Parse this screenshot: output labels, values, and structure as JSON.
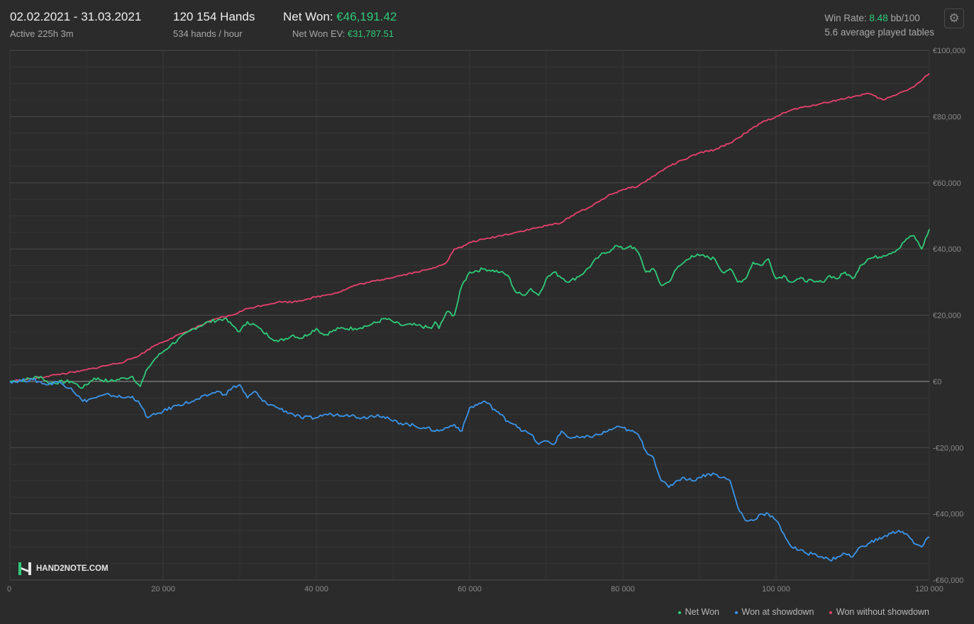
{
  "header": {
    "date_range": "02.02.2021 - 31.03.2021",
    "active": "Active 225h 3m",
    "hands": "120 154 Hands",
    "hands_per_hour": "534 hands / hour",
    "net_won_label": "Net Won:",
    "net_won_value": "€46,191.42",
    "net_won_ev_label": "Net Won  EV:",
    "net_won_ev_value": "€31,787.51",
    "win_rate_label": "Win Rate:",
    "win_rate_value": "8.48",
    "win_rate_unit": "bb/100",
    "avg_tables": "5.6 average played tables"
  },
  "icons": {
    "settings": "gear-icon",
    "logo": "hand2note-logo"
  },
  "logo_text": "HAND2NOTE.COM",
  "colors": {
    "net_won": "#2ecc7a",
    "showdown": "#3a95ea",
    "non_showdown": "#e8416e",
    "background": "#2b2b2b"
  },
  "chart_data": {
    "type": "line",
    "xlim": [
      0,
      120000
    ],
    "ylim": [
      -60000,
      100000
    ],
    "x_ticks": [
      0,
      20000,
      40000,
      60000,
      80000,
      100000,
      120000
    ],
    "x_tick_labels": [
      "0",
      "20 000",
      "40 000",
      "60 000",
      "80 000",
      "100 000",
      "120 000"
    ],
    "y_ticks": [
      100000,
      80000,
      60000,
      40000,
      20000,
      0,
      -20000,
      -40000,
      -60000
    ],
    "y_tick_labels": [
      "€100,000",
      "€80,000",
      "€60,000",
      "€40,000",
      "€20,000",
      "€0",
      "-€20,000",
      "-€40,000",
      "-€60,000"
    ],
    "grid": true,
    "legend_position": "bottom-right",
    "series": [
      {
        "name": "Net Won",
        "color": "#2ecc7a",
        "x": [
          0,
          2000,
          4000,
          5000,
          8000,
          9500,
          11000,
          13000,
          15000,
          16000,
          17000,
          18000,
          19000,
          20000,
          21000,
          24000,
          26000,
          28000,
          29000,
          30000,
          31000,
          32000,
          33000,
          35000,
          37000,
          38000,
          40000,
          41000,
          43000,
          45000,
          47000,
          49000,
          50000,
          51000,
          53000,
          55000,
          55500,
          56000,
          57000,
          58000,
          59000,
          60000,
          62000,
          64000,
          65000,
          66000,
          67000,
          68000,
          69000,
          70000,
          71000,
          73000,
          75000,
          77000,
          78000,
          79000,
          80000,
          81000,
          82000,
          83000,
          84000,
          85000,
          86000,
          87000,
          88000,
          89000,
          90000,
          92000,
          93000,
          94000,
          95000,
          96000,
          97000,
          98000,
          99000,
          100000,
          101000,
          102000,
          103000,
          105000,
          106000,
          107000,
          108000,
          109000,
          110000,
          111000,
          112000,
          114000,
          116000,
          117000,
          118000,
          119000,
          120000
        ],
        "y": [
          0,
          500,
          1500,
          -500,
          0,
          -2000,
          1000,
          0,
          1000,
          1500,
          -1500,
          4000,
          7000,
          9000,
          11000,
          16000,
          18000,
          19000,
          17000,
          15000,
          18000,
          17000,
          15000,
          12000,
          14000,
          13000,
          16000,
          14000,
          16000,
          16000,
          17000,
          19000,
          18000,
          17000,
          17000,
          16000,
          18000,
          16000,
          21000,
          20000,
          29000,
          33000,
          34000,
          33000,
          32000,
          27000,
          26000,
          28000,
          26000,
          31000,
          33000,
          30000,
          33000,
          38000,
          39000,
          41000,
          40000,
          41000,
          39000,
          33000,
          34000,
          29000,
          30000,
          34000,
          36000,
          38000,
          38000,
          37000,
          33000,
          34000,
          30000,
          31000,
          36000,
          35000,
          37000,
          31000,
          32000,
          30000,
          31000,
          30000,
          30000,
          32000,
          31000,
          33000,
          31000,
          35000,
          37000,
          38000,
          40000,
          43000,
          44000,
          40000,
          46000
        ]
      },
      {
        "name": "Won at showdown",
        "color": "#3a95ea",
        "x": [
          0,
          3000,
          5000,
          6000,
          8000,
          9500,
          11000,
          13000,
          15000,
          16000,
          17000,
          18000,
          19000,
          20000,
          22000,
          24000,
          26000,
          27000,
          28000,
          29000,
          30000,
          31000,
          32000,
          33000,
          34000,
          35000,
          37000,
          38000,
          40000,
          41000,
          42000,
          44000,
          46000,
          48000,
          50000,
          52000,
          54000,
          56000,
          57000,
          58000,
          59000,
          60000,
          62000,
          64000,
          65000,
          66000,
          67000,
          68000,
          69000,
          70000,
          71000,
          72000,
          73000,
          75000,
          77000,
          79000,
          80000,
          81000,
          82000,
          83000,
          84000,
          85000,
          86000,
          87000,
          88000,
          89000,
          90000,
          91000,
          92000,
          93000,
          94000,
          95000,
          96000,
          97000,
          98000,
          99000,
          100000,
          101000,
          102000,
          103000,
          104000,
          105000,
          106000,
          107000,
          108000,
          109000,
          110000,
          111000,
          112000,
          114000,
          116000,
          117000,
          118000,
          119000,
          120000
        ],
        "y": [
          0,
          500,
          -1000,
          0,
          -2000,
          -6000,
          -5000,
          -4000,
          -5000,
          -4500,
          -7000,
          -11000,
          -10000,
          -9000,
          -7000,
          -6000,
          -4000,
          -3000,
          -4000,
          -2000,
          -1000,
          -5000,
          -3000,
          -6000,
          -7000,
          -8000,
          -10000,
          -11000,
          -11000,
          -10000,
          -10000,
          -10000,
          -11000,
          -10000,
          -12000,
          -13000,
          -14000,
          -15000,
          -14000,
          -13000,
          -15000,
          -8000,
          -6000,
          -10000,
          -12000,
          -13000,
          -15000,
          -16000,
          -19000,
          -18000,
          -19000,
          -15000,
          -17000,
          -17000,
          -16000,
          -14000,
          -14000,
          -15000,
          -16000,
          -21000,
          -23000,
          -30000,
          -32000,
          -30000,
          -29000,
          -30000,
          -29000,
          -28000,
          -28000,
          -29000,
          -30000,
          -38000,
          -42000,
          -42000,
          -40000,
          -40000,
          -42000,
          -46000,
          -50000,
          -51000,
          -52000,
          -52000,
          -53000,
          -54000,
          -53000,
          -52000,
          -53000,
          -50000,
          -49000,
          -47000,
          -45000,
          -46000,
          -49000,
          -50000,
          -47000
        ]
      },
      {
        "name": "Won without showdown",
        "color": "#e8416e",
        "x": [
          0,
          3000,
          6000,
          9000,
          11000,
          13000,
          15000,
          17000,
          19000,
          21000,
          23000,
          25000,
          27000,
          29000,
          31000,
          33000,
          35000,
          37000,
          39000,
          41000,
          43000,
          45000,
          47000,
          49000,
          51000,
          53000,
          55000,
          56000,
          57000,
          58000,
          59000,
          60000,
          62000,
          64000,
          66000,
          68000,
          70000,
          72000,
          74000,
          76000,
          78000,
          80000,
          82000,
          84000,
          86000,
          88000,
          90000,
          92000,
          94000,
          96000,
          98000,
          100000,
          102000,
          104000,
          106000,
          108000,
          110000,
          112000,
          114000,
          116000,
          118000,
          120000
        ],
        "y": [
          0,
          800,
          2000,
          3000,
          4000,
          5000,
          6000,
          8000,
          11000,
          13000,
          15000,
          17000,
          19000,
          20000,
          22000,
          23000,
          24000,
          24000,
          25000,
          26000,
          27000,
          29000,
          30000,
          31000,
          32000,
          33000,
          34000,
          35000,
          36000,
          40000,
          40500,
          42000,
          43000,
          44000,
          45000,
          46000,
          47000,
          48000,
          51000,
          53000,
          56000,
          58000,
          59000,
          62000,
          65000,
          67000,
          69000,
          70000,
          72000,
          75000,
          78000,
          80000,
          82000,
          83000,
          84000,
          85000,
          86000,
          87000,
          85000,
          87000,
          89000,
          93000
        ]
      }
    ]
  }
}
